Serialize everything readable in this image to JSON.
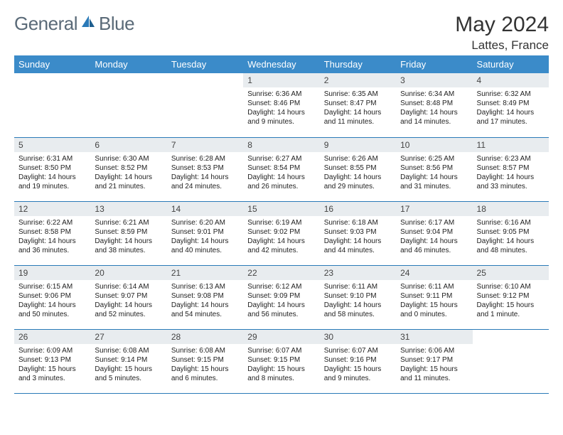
{
  "logo": {
    "general": "General",
    "blue": "Blue"
  },
  "title": {
    "month": "May 2024",
    "location": "Lattes, France"
  },
  "weekday_labels": [
    "Sunday",
    "Monday",
    "Tuesday",
    "Wednesday",
    "Thursday",
    "Friday",
    "Saturday"
  ],
  "colors": {
    "header_bg": "#3b8bc9",
    "header_text": "#ffffff",
    "daynum_bg": "#e8ecef",
    "row_border": "#2a7ab8",
    "logo_gray": "#5a6a78",
    "logo_blue": "#2a7ab8"
  },
  "cells": [
    {
      "n": "",
      "sunrise": "",
      "sunset": "",
      "daylight": ""
    },
    {
      "n": "",
      "sunrise": "",
      "sunset": "",
      "daylight": ""
    },
    {
      "n": "",
      "sunrise": "",
      "sunset": "",
      "daylight": ""
    },
    {
      "n": "1",
      "sunrise": "Sunrise: 6:36 AM",
      "sunset": "Sunset: 8:46 PM",
      "daylight": "Daylight: 14 hours and 9 minutes."
    },
    {
      "n": "2",
      "sunrise": "Sunrise: 6:35 AM",
      "sunset": "Sunset: 8:47 PM",
      "daylight": "Daylight: 14 hours and 11 minutes."
    },
    {
      "n": "3",
      "sunrise": "Sunrise: 6:34 AM",
      "sunset": "Sunset: 8:48 PM",
      "daylight": "Daylight: 14 hours and 14 minutes."
    },
    {
      "n": "4",
      "sunrise": "Sunrise: 6:32 AM",
      "sunset": "Sunset: 8:49 PM",
      "daylight": "Daylight: 14 hours and 17 minutes."
    },
    {
      "n": "5",
      "sunrise": "Sunrise: 6:31 AM",
      "sunset": "Sunset: 8:50 PM",
      "daylight": "Daylight: 14 hours and 19 minutes."
    },
    {
      "n": "6",
      "sunrise": "Sunrise: 6:30 AM",
      "sunset": "Sunset: 8:52 PM",
      "daylight": "Daylight: 14 hours and 21 minutes."
    },
    {
      "n": "7",
      "sunrise": "Sunrise: 6:28 AM",
      "sunset": "Sunset: 8:53 PM",
      "daylight": "Daylight: 14 hours and 24 minutes."
    },
    {
      "n": "8",
      "sunrise": "Sunrise: 6:27 AM",
      "sunset": "Sunset: 8:54 PM",
      "daylight": "Daylight: 14 hours and 26 minutes."
    },
    {
      "n": "9",
      "sunrise": "Sunrise: 6:26 AM",
      "sunset": "Sunset: 8:55 PM",
      "daylight": "Daylight: 14 hours and 29 minutes."
    },
    {
      "n": "10",
      "sunrise": "Sunrise: 6:25 AM",
      "sunset": "Sunset: 8:56 PM",
      "daylight": "Daylight: 14 hours and 31 minutes."
    },
    {
      "n": "11",
      "sunrise": "Sunrise: 6:23 AM",
      "sunset": "Sunset: 8:57 PM",
      "daylight": "Daylight: 14 hours and 33 minutes."
    },
    {
      "n": "12",
      "sunrise": "Sunrise: 6:22 AM",
      "sunset": "Sunset: 8:58 PM",
      "daylight": "Daylight: 14 hours and 36 minutes."
    },
    {
      "n": "13",
      "sunrise": "Sunrise: 6:21 AM",
      "sunset": "Sunset: 8:59 PM",
      "daylight": "Daylight: 14 hours and 38 minutes."
    },
    {
      "n": "14",
      "sunrise": "Sunrise: 6:20 AM",
      "sunset": "Sunset: 9:01 PM",
      "daylight": "Daylight: 14 hours and 40 minutes."
    },
    {
      "n": "15",
      "sunrise": "Sunrise: 6:19 AM",
      "sunset": "Sunset: 9:02 PM",
      "daylight": "Daylight: 14 hours and 42 minutes."
    },
    {
      "n": "16",
      "sunrise": "Sunrise: 6:18 AM",
      "sunset": "Sunset: 9:03 PM",
      "daylight": "Daylight: 14 hours and 44 minutes."
    },
    {
      "n": "17",
      "sunrise": "Sunrise: 6:17 AM",
      "sunset": "Sunset: 9:04 PM",
      "daylight": "Daylight: 14 hours and 46 minutes."
    },
    {
      "n": "18",
      "sunrise": "Sunrise: 6:16 AM",
      "sunset": "Sunset: 9:05 PM",
      "daylight": "Daylight: 14 hours and 48 minutes."
    },
    {
      "n": "19",
      "sunrise": "Sunrise: 6:15 AM",
      "sunset": "Sunset: 9:06 PM",
      "daylight": "Daylight: 14 hours and 50 minutes."
    },
    {
      "n": "20",
      "sunrise": "Sunrise: 6:14 AM",
      "sunset": "Sunset: 9:07 PM",
      "daylight": "Daylight: 14 hours and 52 minutes."
    },
    {
      "n": "21",
      "sunrise": "Sunrise: 6:13 AM",
      "sunset": "Sunset: 9:08 PM",
      "daylight": "Daylight: 14 hours and 54 minutes."
    },
    {
      "n": "22",
      "sunrise": "Sunrise: 6:12 AM",
      "sunset": "Sunset: 9:09 PM",
      "daylight": "Daylight: 14 hours and 56 minutes."
    },
    {
      "n": "23",
      "sunrise": "Sunrise: 6:11 AM",
      "sunset": "Sunset: 9:10 PM",
      "daylight": "Daylight: 14 hours and 58 minutes."
    },
    {
      "n": "24",
      "sunrise": "Sunrise: 6:11 AM",
      "sunset": "Sunset: 9:11 PM",
      "daylight": "Daylight: 15 hours and 0 minutes."
    },
    {
      "n": "25",
      "sunrise": "Sunrise: 6:10 AM",
      "sunset": "Sunset: 9:12 PM",
      "daylight": "Daylight: 15 hours and 1 minute."
    },
    {
      "n": "26",
      "sunrise": "Sunrise: 6:09 AM",
      "sunset": "Sunset: 9:13 PM",
      "daylight": "Daylight: 15 hours and 3 minutes."
    },
    {
      "n": "27",
      "sunrise": "Sunrise: 6:08 AM",
      "sunset": "Sunset: 9:14 PM",
      "daylight": "Daylight: 15 hours and 5 minutes."
    },
    {
      "n": "28",
      "sunrise": "Sunrise: 6:08 AM",
      "sunset": "Sunset: 9:15 PM",
      "daylight": "Daylight: 15 hours and 6 minutes."
    },
    {
      "n": "29",
      "sunrise": "Sunrise: 6:07 AM",
      "sunset": "Sunset: 9:15 PM",
      "daylight": "Daylight: 15 hours and 8 minutes."
    },
    {
      "n": "30",
      "sunrise": "Sunrise: 6:07 AM",
      "sunset": "Sunset: 9:16 PM",
      "daylight": "Daylight: 15 hours and 9 minutes."
    },
    {
      "n": "31",
      "sunrise": "Sunrise: 6:06 AM",
      "sunset": "Sunset: 9:17 PM",
      "daylight": "Daylight: 15 hours and 11 minutes."
    },
    {
      "n": "",
      "sunrise": "",
      "sunset": "",
      "daylight": ""
    }
  ]
}
